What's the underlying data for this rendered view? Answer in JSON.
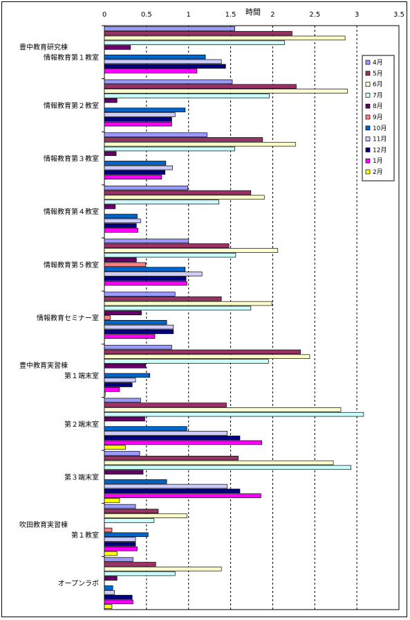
{
  "chart_data": {
    "type": "bar",
    "orientation": "horizontal",
    "xlabel": "時間",
    "xlim": [
      0,
      3.5
    ],
    "xticks": [
      "0",
      "0.5",
      "1",
      "1.5",
      "2",
      "2.5",
      "3",
      "3.5"
    ],
    "grid": "vertical-dashed",
    "legend_position": "right",
    "categories": [
      [
        "豊中教育研究棟",
        "情報教育第１教室"
      ],
      [
        "情報教育第２教室"
      ],
      [
        "情報教育第３教室"
      ],
      [
        "情報教育第４教室"
      ],
      [
        "情報教育第５教室"
      ],
      [
        "情報教育セミナー室"
      ],
      [
        "豊中教育実習棟",
        "第１端末室"
      ],
      [
        "第２端末室"
      ],
      [
        "第３端末室"
      ],
      [
        "吹田教育実習棟",
        "第１教室"
      ],
      [
        "オープンラボ"
      ]
    ],
    "series": [
      {
        "name": "4月",
        "color": "#9999FF",
        "values": [
          1.55,
          1.52,
          1.22,
          0.99,
          1.0,
          0.84,
          0.8,
          0.43,
          0.42,
          0.37,
          0.34
        ]
      },
      {
        "name": "5月",
        "color": "#993366",
        "values": [
          2.23,
          2.28,
          1.88,
          1.74,
          1.48,
          1.39,
          2.33,
          1.45,
          1.59,
          0.64,
          0.61
        ]
      },
      {
        "name": "6月",
        "color": "#FFFFCC",
        "values": [
          2.86,
          2.89,
          2.27,
          1.9,
          2.06,
          1.99,
          2.44,
          2.81,
          2.72,
          0.98,
          1.39
        ]
      },
      {
        "name": "7月",
        "color": "#CCFFFF",
        "values": [
          2.14,
          1.96,
          1.55,
          1.36,
          1.56,
          1.74,
          1.95,
          3.08,
          2.93,
          0.59,
          0.84
        ]
      },
      {
        "name": "8月",
        "color": "#660066",
        "values": [
          0.31,
          0.15,
          0.14,
          0.13,
          0.38,
          0.44,
          0.49,
          0.48,
          0.46,
          0.0,
          0.15
        ]
      },
      {
        "name": "9月",
        "color": "#FF8080",
        "values": [
          0.0,
          0.0,
          0.0,
          0.0,
          0.49,
          0.07,
          0.0,
          0.0,
          0.0,
          0.09,
          0.0
        ]
      },
      {
        "name": "10月",
        "color": "#0066CC",
        "values": [
          1.2,
          0.96,
          0.73,
          0.39,
          0.96,
          0.74,
          0.54,
          0.98,
          0.74,
          0.52,
          0.1
        ]
      },
      {
        "name": "11月",
        "color": "#CCCCFF",
        "values": [
          1.39,
          0.84,
          0.81,
          0.43,
          1.16,
          0.82,
          0.37,
          1.46,
          1.46,
          0.37,
          0.12
        ]
      },
      {
        "name": "12月",
        "color": "#000080",
        "values": [
          1.44,
          0.8,
          0.72,
          0.38,
          0.97,
          0.82,
          0.33,
          1.61,
          1.61,
          0.37,
          0.33
        ]
      },
      {
        "name": "1月",
        "color": "#FF00FF",
        "values": [
          1.1,
          0.8,
          0.68,
          0.4,
          0.98,
          0.6,
          0.18,
          1.87,
          1.86,
          0.39,
          0.34
        ]
      },
      {
        "name": "2月",
        "color": "#FFFF00",
        "values": [
          0.0,
          0.0,
          0.0,
          0.0,
          0.0,
          0.0,
          0.01,
          0.25,
          0.18,
          0.15,
          0.09
        ]
      }
    ]
  }
}
